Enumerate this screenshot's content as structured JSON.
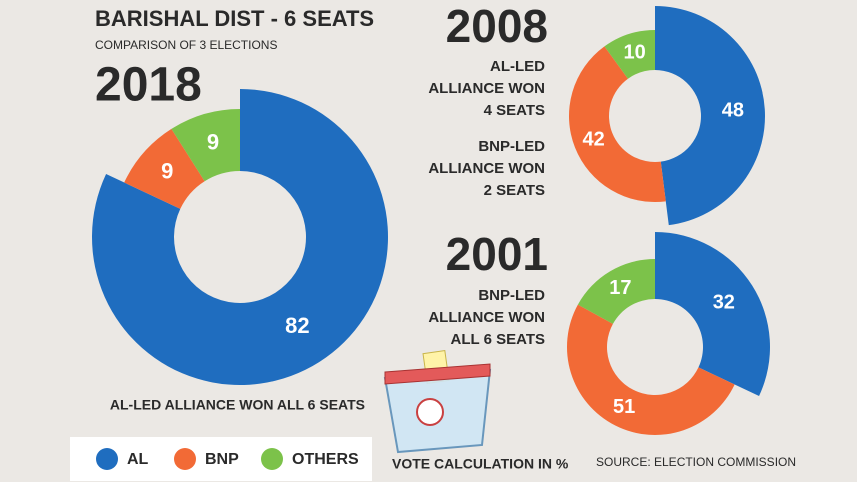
{
  "header": {
    "title": "BARISHAL DIST - 6 SEATS",
    "subtitle": "COMPARISON OF 3 ELECTIONS"
  },
  "chart_data": [
    {
      "type": "pie",
      "title": "2018",
      "categories": [
        "AL",
        "BNP",
        "OTHERS"
      ],
      "values": [
        82,
        9,
        9
      ],
      "colors": [
        "#1f6dbf",
        "#f26a36",
        "#7cc24a"
      ],
      "annotation": [
        [
          "AL-LED ALLIANCE WON ALL 6 SEATS"
        ]
      ]
    },
    {
      "type": "pie",
      "title": "2008",
      "categories": [
        "AL",
        "BNP",
        "OTHERS"
      ],
      "values": [
        48,
        42,
        10
      ],
      "colors": [
        "#1f6dbf",
        "#f26a36",
        "#7cc24a"
      ],
      "annotation": [
        [
          "AL-LED",
          "ALLIANCE WON",
          "4 SEATS"
        ],
        [
          "BNP-LED",
          "ALLIANCE WON",
          "2 SEATS"
        ]
      ]
    },
    {
      "type": "pie",
      "title": "2001",
      "categories": [
        "AL",
        "BNP",
        "OTHERS"
      ],
      "values": [
        32,
        51,
        17
      ],
      "colors": [
        "#1f6dbf",
        "#f26a36",
        "#7cc24a"
      ],
      "annotation": [
        [
          "BNP-LED",
          "ALLIANCE WON",
          "ALL 6 SEATS"
        ]
      ]
    }
  ],
  "footer": {
    "note": "VOTE CALCULATION IN %",
    "source": "SOURCE: ELECTION COMMISSION"
  }
}
